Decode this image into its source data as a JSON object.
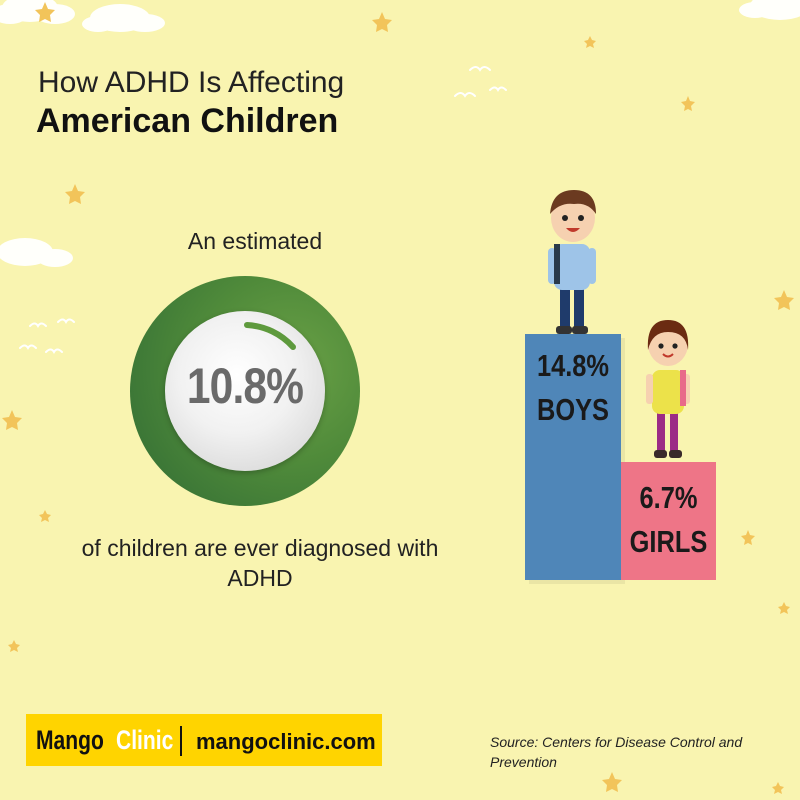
{
  "title": {
    "line1": "How ADHD Is Affecting",
    "line2": "American Children"
  },
  "stat": {
    "intro": "An estimated",
    "value": "10.8%",
    "outro": "of children are ever diagnosed with ADHD"
  },
  "comparison": {
    "boys": {
      "value": "14.8%",
      "label": "BOYS",
      "color": "#4f86b8"
    },
    "girls": {
      "value": "6.7%",
      "label": "GIRLS",
      "color": "#ee7587"
    }
  },
  "footer": {
    "brand_part1": "Mango",
    "brand_part2": "Clinic",
    "website": "mangoclinic.com",
    "source": "Source: Centers for Disease Control and Prevention"
  },
  "colors": {
    "background": "#f9f4b0",
    "ring": "#4f8a3a",
    "brand": "#ffd400"
  }
}
